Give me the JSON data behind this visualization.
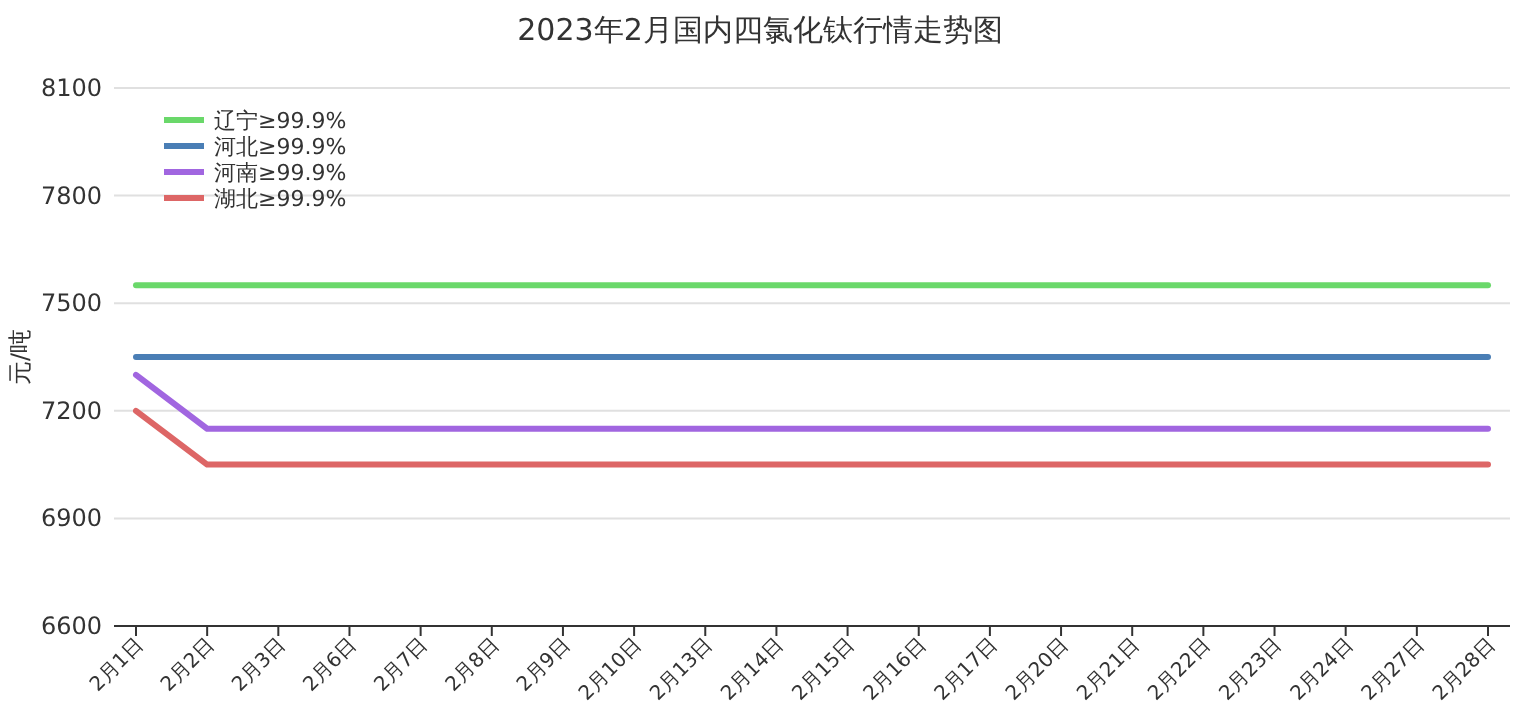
{
  "chart_data": {
    "type": "line",
    "title": "2023年2月国内四氯化钛行情走势图",
    "ylabel": "元/吨",
    "categories": [
      "2月1日",
      "2月2日",
      "2月3日",
      "2月6日",
      "2月7日",
      "2月8日",
      "2月9日",
      "2月10日",
      "2月13日",
      "2月14日",
      "2月15日",
      "2月16日",
      "2月17日",
      "2月20日",
      "2月21日",
      "2月22日",
      "2月23日",
      "2月24日",
      "2月27日",
      "2月28日"
    ],
    "series": [
      {
        "name": "辽宁≥99.9%",
        "color": "#6ad86a",
        "values": [
          7550,
          7550,
          7550,
          7550,
          7550,
          7550,
          7550,
          7550,
          7550,
          7550,
          7550,
          7550,
          7550,
          7550,
          7550,
          7550,
          7550,
          7550,
          7550,
          7550
        ]
      },
      {
        "name": "河北≥99.9%",
        "color": "#4a7eb5",
        "values": [
          7350,
          7350,
          7350,
          7350,
          7350,
          7350,
          7350,
          7350,
          7350,
          7350,
          7350,
          7350,
          7350,
          7350,
          7350,
          7350,
          7350,
          7350,
          7350,
          7350
        ]
      },
      {
        "name": "河南≥99.9%",
        "color": "#a166e0",
        "values": [
          7300,
          7150,
          7150,
          7150,
          7150,
          7150,
          7150,
          7150,
          7150,
          7150,
          7150,
          7150,
          7150,
          7150,
          7150,
          7150,
          7150,
          7150,
          7150,
          7150
        ]
      },
      {
        "name": "湖北≥99.9%",
        "color": "#dd6666",
        "values": [
          7200,
          7050,
          7050,
          7050,
          7050,
          7050,
          7050,
          7050,
          7050,
          7050,
          7050,
          7050,
          7050,
          7050,
          7050,
          7050,
          7050,
          7050,
          7050,
          7050
        ]
      }
    ],
    "ylim": [
      6600,
      8100
    ],
    "yticks": [
      6600,
      6900,
      7200,
      7500,
      7800,
      8100
    ],
    "grid": "y",
    "legend": "top left"
  }
}
